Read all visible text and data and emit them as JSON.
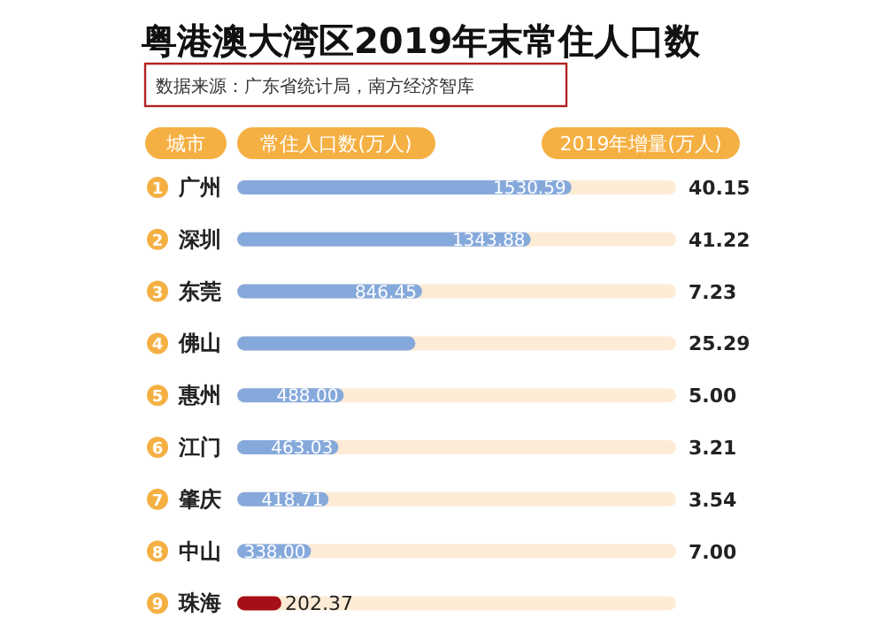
{
  "chart_data": {
    "type": "bar",
    "orientation": "horizontal",
    "title": "粤港澳大湾区2019年末常住人口数",
    "xlabel": "常住人口数(万人)",
    "ylabel": "城市",
    "categories": [
      "广州",
      "深圳",
      "东莞",
      "佛山",
      "惠州",
      "江门",
      "肇庆",
      "中山",
      "珠海"
    ],
    "values": [
      1530.59,
      1343.88,
      846.45,
      815.86,
      488.0,
      463.03,
      418.71,
      338.0,
      202.37
    ],
    "value_labels": [
      "1530.59",
      "1343.88",
      "846.45",
      null,
      "488.00",
      "463.03",
      "418.71",
      "338.00",
      "202.37"
    ],
    "colors": [
      "#86a9dc",
      "#86a9dc",
      "#86a9dc",
      "#86a9dc",
      "#86a9dc",
      "#86a9dc",
      "#86a9dc",
      "#86a9dc",
      "#a50f15"
    ],
    "xlim": [
      0,
      2010
    ],
    "annotations": [
      "数据来源：广东省统计局，南方经济智库",
      "2019年增量(万人)",
      "1",
      "2",
      "3",
      "4",
      "5",
      "6",
      "7",
      "8",
      "9",
      "40.15",
      "41.22",
      "7.23",
      "25.29",
      "5.00",
      "3.21",
      "3.54",
      "7.00"
    ]
  }
}
